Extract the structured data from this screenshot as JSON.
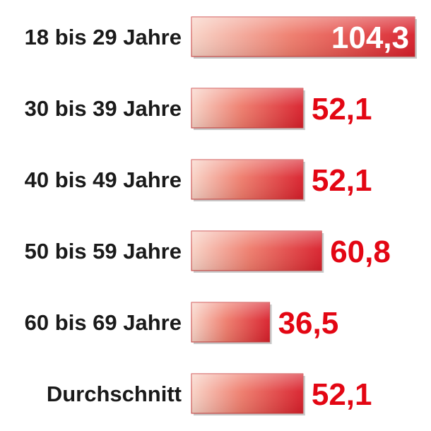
{
  "chart_data": {
    "type": "bar",
    "orientation": "horizontal",
    "categories": [
      "18 bis 29 Jahre",
      "30 bis 39 Jahre",
      "40 bis 49 Jahre",
      "50 bis 59 Jahre",
      "60 bis 69 Jahre",
      "Durchschnitt"
    ],
    "values": [
      104.3,
      52.1,
      52.1,
      60.8,
      36.5,
      52.1
    ],
    "value_labels": [
      "104,3",
      "52,1",
      "52,1",
      "60,8",
      "36,5",
      "52,1"
    ],
    "title": "",
    "xlabel": "",
    "ylabel": "",
    "xlim": [
      0,
      104.3
    ],
    "grid": false,
    "legend": "none",
    "colors": {
      "bar_light": "#f8d3c6",
      "bar_mid": "#ee7a6a",
      "bar_dark": "#d81e2a",
      "value_text": "#e30613",
      "value_text_inside": "#ffffff",
      "category_text": "#1a1a1a"
    }
  }
}
